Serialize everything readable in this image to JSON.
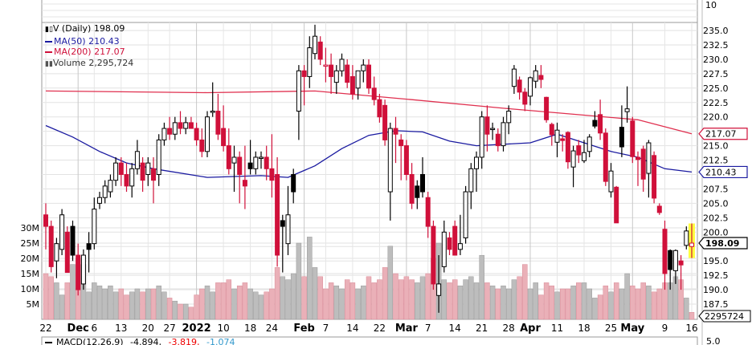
{
  "chart_data": {
    "type": "candlestick",
    "symbol_label": "V (Daily)",
    "last_close": "198.09",
    "legend": {
      "price": "V (Daily) 198.09",
      "ma50": "MA(50) 210.43",
      "ma200": "MA(200) 217.07",
      "volume": "Volume 2,295,724"
    },
    "price_ticks": [
      "235.0",
      "232.5",
      "230.0",
      "227.5",
      "225.0",
      "222.5",
      "220.0",
      "215.0",
      "212.5",
      "207.5",
      "205.0",
      "202.5",
      "200.0",
      "195.0",
      "192.5",
      "190.0",
      "187.5"
    ],
    "price_tick_values": [
      235,
      232.5,
      230,
      227.5,
      225,
      222.5,
      220,
      215,
      212.5,
      207.5,
      205,
      202.5,
      200,
      195,
      192.5,
      190,
      187.5
    ],
    "grid_values": [
      235,
      232.5,
      230,
      227.5,
      225,
      222.5,
      220,
      217.5,
      215,
      212.5,
      210,
      207.5,
      205,
      202.5,
      200,
      197.5,
      195,
      192.5,
      190,
      187.5
    ],
    "volume_ticks": [
      "30M",
      "25M",
      "20M",
      "15M",
      "10M",
      "5M"
    ],
    "volume_tick_values": [
      30,
      25,
      20,
      15,
      10,
      5
    ],
    "top_panel_label": "10",
    "tags": {
      "ma200": "217.07",
      "ma50": "210.43",
      "close": "198.09",
      "volume": "2295724"
    },
    "tag_values": {
      "ma200": 217.07,
      "ma50": 210.43,
      "close": 198.09,
      "volume_m": 2.295724
    },
    "x_labels": [
      {
        "i": 0,
        "t": "22",
        "b": false
      },
      {
        "i": 6,
        "t": "Dec",
        "b": true
      },
      {
        "i": 9,
        "t": "6",
        "b": false
      },
      {
        "i": 14,
        "t": "13",
        "b": false
      },
      {
        "i": 19,
        "t": "20",
        "b": false
      },
      {
        "i": 23,
        "t": "27",
        "b": false
      },
      {
        "i": 28,
        "t": "2022",
        "b": true
      },
      {
        "i": 33,
        "t": "10",
        "b": false
      },
      {
        "i": 38,
        "t": "18",
        "b": false
      },
      {
        "i": 42,
        "t": "24",
        "b": false
      },
      {
        "i": 48,
        "t": "Feb",
        "b": true
      },
      {
        "i": 52,
        "t": "7",
        "b": false
      },
      {
        "i": 57,
        "t": "14",
        "b": false
      },
      {
        "i": 62,
        "t": "22",
        "b": false
      },
      {
        "i": 67,
        "t": "Mar",
        "b": true
      },
      {
        "i": 71,
        "t": "7",
        "b": false
      },
      {
        "i": 76,
        "t": "14",
        "b": false
      },
      {
        "i": 81,
        "t": "21",
        "b": false
      },
      {
        "i": 86,
        "t": "28",
        "b": false
      },
      {
        "i": 90,
        "t": "Apr",
        "b": true
      },
      {
        "i": 95,
        "t": "11",
        "b": false
      },
      {
        "i": 100,
        "t": "18",
        "b": false
      },
      {
        "i": 105,
        "t": "25",
        "b": false
      },
      {
        "i": 109,
        "t": "May",
        "b": true
      },
      {
        "i": 115,
        "t": "9",
        "b": false
      },
      {
        "i": 120,
        "t": "16",
        "b": false
      }
    ],
    "ohlcv": [
      [
        203,
        205,
        197,
        201,
        15
      ],
      [
        201,
        202,
        193,
        194,
        14
      ],
      [
        195,
        199,
        192,
        198,
        12
      ],
      [
        197,
        204,
        196,
        203,
        8
      ],
      [
        200,
        201,
        193,
        193,
        12
      ],
      [
        201,
        202,
        195,
        196,
        18
      ],
      [
        196,
        198,
        189,
        190,
        20
      ],
      [
        191,
        197,
        190,
        196,
        18
      ],
      [
        198,
        200,
        193,
        197,
        9
      ],
      [
        198,
        206,
        197,
        204,
        12
      ],
      [
        205,
        207,
        204,
        206,
        11
      ],
      [
        206,
        209,
        205,
        208,
        10
      ],
      [
        207,
        210,
        206,
        209,
        11
      ],
      [
        209,
        213,
        208,
        212,
        9
      ],
      [
        212,
        213,
        208,
        210,
        10
      ],
      [
        210,
        212,
        207,
        208,
        8
      ],
      [
        208,
        212,
        206,
        211,
        9
      ],
      [
        211,
        216,
        210,
        214,
        10
      ],
      [
        212,
        213,
        207,
        209,
        9
      ],
      [
        210,
        213,
        208,
        212,
        10
      ],
      [
        211,
        213,
        205,
        209,
        10
      ],
      [
        210,
        217,
        208,
        216,
        11
      ],
      [
        216,
        219,
        215,
        218,
        9
      ],
      [
        218,
        220,
        216,
        217,
        7
      ],
      [
        217,
        220,
        216,
        219,
        6
      ],
      [
        219,
        221,
        217,
        218,
        5
      ],
      [
        218,
        220,
        217,
        219,
        5
      ],
      [
        219,
        220,
        218,
        218,
        4
      ],
      [
        218,
        219,
        215,
        216,
        8
      ],
      [
        216,
        218,
        213,
        214,
        10
      ],
      [
        214,
        221,
        213,
        220,
        11
      ],
      [
        221,
        226,
        220,
        221,
        9
      ],
      [
        221,
        224,
        216,
        217,
        12
      ],
      [
        218,
        222,
        214,
        215,
        12
      ],
      [
        215,
        218,
        210,
        211,
        13
      ],
      [
        212,
        215,
        207,
        213,
        10
      ],
      [
        213,
        214,
        205,
        210,
        11
      ],
      [
        209,
        215,
        204,
        208,
        12
      ],
      [
        212,
        216,
        210,
        211,
        10
      ],
      [
        211,
        214,
        210,
        213,
        9
      ],
      [
        213,
        214,
        211,
        213,
        8
      ],
      [
        213,
        215,
        209,
        211,
        9
      ],
      [
        211,
        217,
        206,
        209,
        10
      ],
      [
        210,
        213,
        194,
        196,
        17
      ],
      [
        202,
        203,
        193,
        201,
        14
      ],
      [
        198,
        208,
        196,
        203,
        13
      ],
      [
        210,
        211,
        205,
        207,
        15
      ],
      [
        221,
        229,
        216,
        228,
        25
      ],
      [
        228,
        229,
        222,
        227,
        14
      ],
      [
        227,
        234,
        225,
        232,
        27
      ],
      [
        231,
        236,
        230,
        234,
        17
      ],
      [
        233,
        234,
        229,
        230,
        14
      ],
      [
        229,
        232,
        226,
        229,
        10
      ],
      [
        229,
        231,
        224,
        227,
        12
      ],
      [
        226,
        229,
        224,
        228,
        11
      ],
      [
        228,
        231,
        227,
        230,
        10
      ],
      [
        229,
        230,
        225,
        226,
        13
      ],
      [
        227,
        229,
        223,
        224,
        12
      ],
      [
        225,
        228,
        223,
        228,
        10
      ],
      [
        228,
        230,
        226,
        229,
        11
      ],
      [
        229,
        230,
        224,
        225,
        14
      ],
      [
        225,
        227,
        222,
        223,
        12
      ],
      [
        223,
        224,
        219,
        220,
        13
      ],
      [
        222,
        223,
        215,
        216,
        17
      ],
      [
        207,
        219,
        202,
        218,
        24
      ],
      [
        218,
        220,
        212,
        217,
        15
      ],
      [
        216,
        217,
        209,
        215,
        13
      ],
      [
        215,
        216,
        209,
        210,
        14
      ],
      [
        210,
        212,
        204,
        205,
        13
      ],
      [
        208,
        209,
        204,
        206,
        12
      ],
      [
        210,
        213,
        206,
        207,
        14
      ],
      [
        206,
        207,
        199,
        201,
        15
      ],
      [
        201,
        202,
        190,
        191,
        20
      ],
      [
        189,
        196,
        186,
        191,
        25
      ],
      [
        194,
        202,
        193,
        200,
        13
      ],
      [
        199,
        200,
        196,
        197,
        12
      ],
      [
        201,
        202,
        196,
        196,
        13
      ],
      [
        197,
        203,
        196,
        198,
        11
      ],
      [
        199,
        208,
        198,
        207,
        13
      ],
      [
        207,
        212,
        204,
        211,
        14
      ],
      [
        211,
        214,
        207,
        213,
        12
      ],
      [
        213,
        221,
        211,
        220,
        21
      ],
      [
        220,
        222,
        214,
        217,
        12
      ],
      [
        218,
        219,
        216,
        218,
        11
      ],
      [
        217,
        218,
        214,
        215,
        10
      ],
      [
        215,
        220,
        214,
        219,
        11
      ],
      [
        219,
        222,
        217,
        221,
        10
      ],
      [
        225.3,
        229,
        224,
        228.3,
        13
      ],
      [
        226.4,
        227,
        223,
        224.3,
        14
      ],
      [
        224.3,
        225,
        221,
        222.2,
        18
      ],
      [
        223.6,
        227,
        222,
        226.8,
        10
      ],
      [
        226.2,
        229,
        225,
        228,
        12
      ],
      [
        227.2,
        229,
        225,
        226.5,
        8
      ],
      [
        223.4,
        223.5,
        219,
        219.5,
        12
      ],
      [
        218.7,
        219,
        215,
        216.9,
        11
      ],
      [
        215.6,
        219,
        213,
        217.7,
        9
      ],
      [
        216.2,
        217,
        214,
        215.9,
        10
      ],
      [
        217.3,
        217.5,
        211,
        212.2,
        10
      ],
      [
        211.3,
        215,
        207.8,
        214.1,
        11
      ],
      [
        215,
        216,
        212,
        213.4,
        12
      ],
      [
        212.4,
        216,
        212,
        213.8,
        12
      ],
      [
        214,
        217,
        213,
        216.5,
        10
      ],
      [
        219.4,
        221,
        218,
        218.4,
        7
      ],
      [
        220.4,
        223,
        216,
        217.2,
        8
      ],
      [
        217.2,
        218,
        208,
        208.8,
        11
      ],
      [
        207,
        212,
        206,
        210.6,
        9
      ],
      [
        207.8,
        208,
        201.6,
        201.6,
        12
      ],
      [
        218.2,
        222,
        213,
        214.8,
        10
      ],
      [
        220.9,
        225.3,
        219,
        221.4,
        15
      ],
      [
        219.3,
        220,
        212,
        213.1,
        11
      ],
      [
        213,
        214,
        208,
        212.6,
        10
      ],
      [
        214.4,
        215,
        207,
        209.2,
        12
      ],
      [
        210.2,
        216,
        206,
        215.5,
        11
      ],
      [
        213.3,
        214,
        205,
        205.9,
        9
      ],
      [
        204.5,
        205,
        203,
        203.4,
        10
      ],
      [
        200.5,
        202,
        190,
        192.8,
        12
      ],
      [
        196.8,
        197,
        190,
        193.5,
        12
      ],
      [
        193.3,
        197,
        191,
        196.8,
        14
      ],
      [
        195,
        196,
        190,
        194.3,
        13
      ],
      [
        197.7,
        201,
        197,
        200.2,
        7
      ],
      [
        197.5,
        201.5,
        195.5,
        198.09,
        2.3
      ]
    ],
    "ma50": [
      [
        0,
        218.5
      ],
      [
        5,
        216.5
      ],
      [
        10,
        214
      ],
      [
        15,
        212
      ],
      [
        20,
        211
      ],
      [
        30,
        209.5
      ],
      [
        40,
        209.8
      ],
      [
        45,
        209.5
      ],
      [
        50,
        211.5
      ],
      [
        55,
        214.5
      ],
      [
        60,
        216.8
      ],
      [
        65,
        217.6
      ],
      [
        70,
        217.4
      ],
      [
        75,
        215.8
      ],
      [
        80,
        215
      ],
      [
        90,
        215.5
      ],
      [
        95,
        217
      ],
      [
        100,
        215.5
      ],
      [
        105,
        214
      ],
      [
        110,
        213
      ],
      [
        115,
        211
      ],
      [
        120,
        210.43
      ]
    ],
    "ma200": [
      [
        0,
        224.5
      ],
      [
        30,
        224.2
      ],
      [
        50,
        224.5
      ],
      [
        68,
        223
      ],
      [
        85,
        221.5
      ],
      [
        100,
        220.3
      ],
      [
        110,
        219.5
      ],
      [
        120,
        217.07
      ]
    ],
    "macd_panel": {
      "title": "MACD(12,26,9)",
      "macd": "-4.894,",
      "signal": "-3.819,",
      "histogram": "-1.074",
      "top_tick": "5.0"
    },
    "colors": {
      "up": "#000000",
      "down": "#d0103a",
      "ma50": "#1a1aa0",
      "ma200": "#e0304f",
      "vol_up": "#bdbdbd",
      "vol_down": "#eab0b8",
      "highlight": "#ffff40"
    }
  }
}
